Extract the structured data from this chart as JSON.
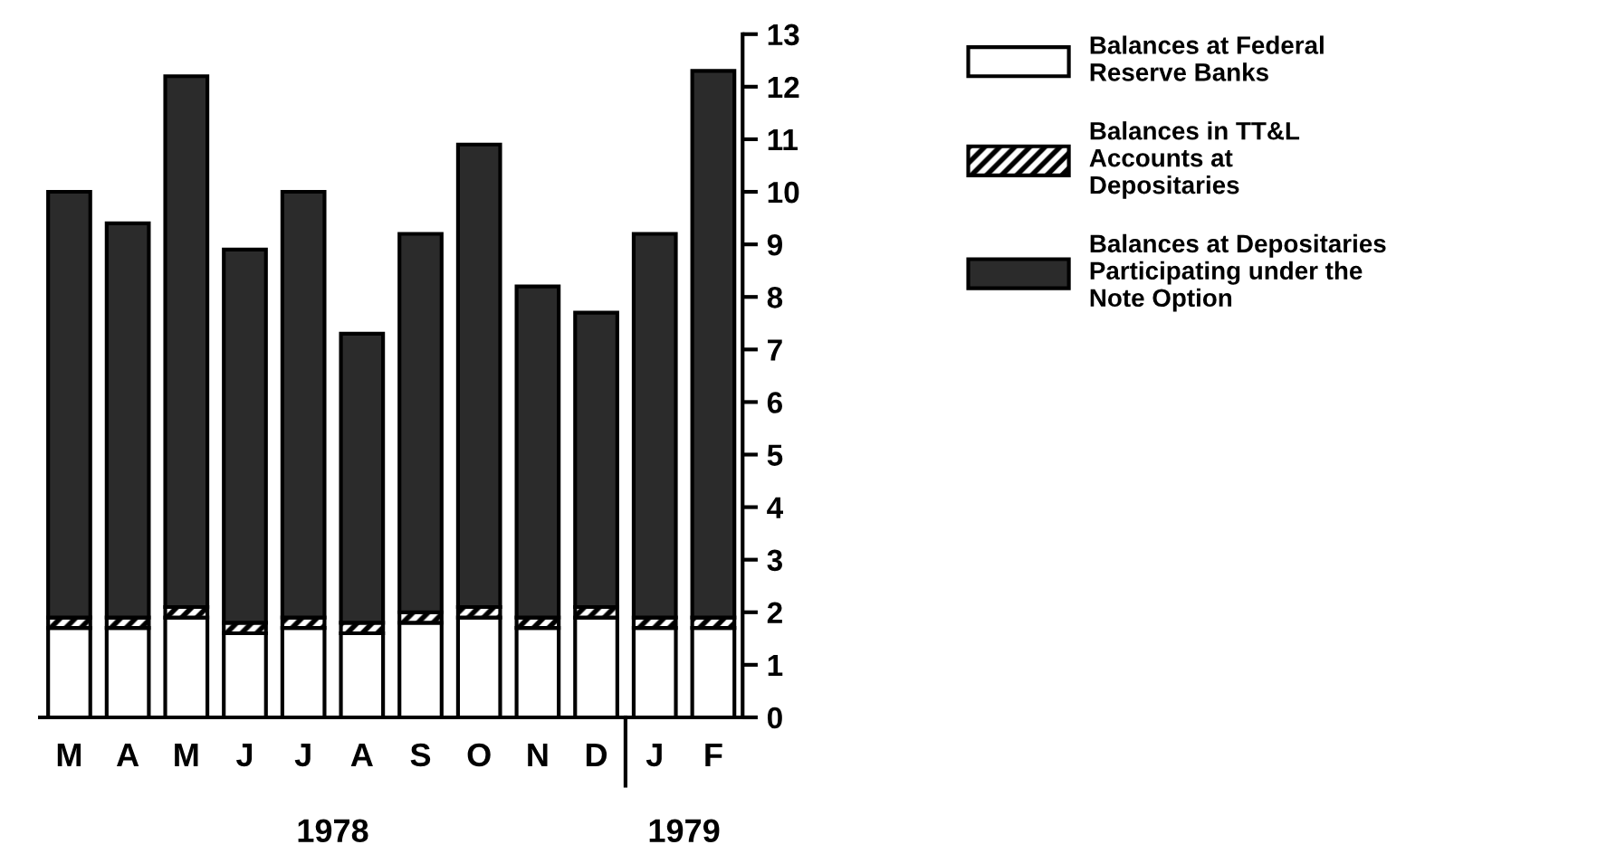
{
  "chart_data": {
    "type": "bar",
    "stacked": true,
    "categories": [
      "M",
      "A",
      "M",
      "J",
      "J",
      "A",
      "S",
      "O",
      "N",
      "D",
      "J",
      "F"
    ],
    "series": [
      {
        "name": "Balances at Federal\nReserve Banks",
        "color": "#ffffff",
        "values": [
          1.7,
          1.7,
          1.9,
          1.6,
          1.7,
          1.6,
          1.8,
          1.9,
          1.7,
          1.9,
          1.7,
          1.7
        ]
      },
      {
        "name": "Balances in TT&L\nAccounts at\nDepositaries",
        "color": "#000000",
        "values": [
          0.2,
          0.2,
          0.2,
          0.2,
          0.2,
          0.2,
          0.2,
          0.2,
          0.2,
          0.2,
          0.2,
          0.2
        ]
      },
      {
        "name": "Balances at Depositaries\nParticipating under the\nNote Option",
        "color": "#2b2b2b",
        "values": [
          8.1,
          7.5,
          10.1,
          7.1,
          8.1,
          5.5,
          7.2,
          8.8,
          6.3,
          5.6,
          7.3,
          10.4
        ]
      }
    ],
    "ylim": [
      0,
      13
    ],
    "yticks": [
      0,
      1,
      2,
      3,
      4,
      5,
      6,
      7,
      8,
      9,
      10,
      11,
      12,
      13
    ],
    "grid": false,
    "legend": "right",
    "annotations": [
      "1978",
      "1979"
    ]
  }
}
